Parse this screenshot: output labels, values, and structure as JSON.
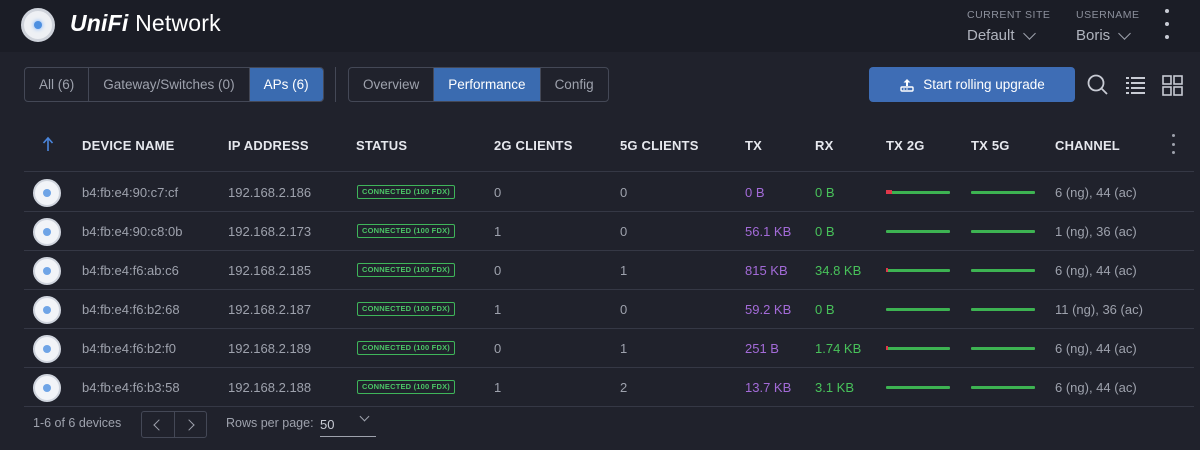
{
  "header": {
    "brand_prefix": "UniFi",
    "brand_suffix": " Network",
    "site_label": "CURRENT SITE",
    "site_value": "Default",
    "user_label": "USERNAME",
    "user_value": "Boris"
  },
  "filters": {
    "device_types": [
      "All (6)",
      "Gateway/Switches (0)",
      "APs (6)"
    ],
    "active_type": "APs (6)",
    "views": [
      "Overview",
      "Performance",
      "Config"
    ],
    "active_view": "Performance"
  },
  "toolbar": {
    "upgrade_label": "Start rolling upgrade"
  },
  "table": {
    "columns": {
      "name": "DEVICE NAME",
      "ip": "IP ADDRESS",
      "status": "STATUS",
      "clients2g": "2G CLIENTS",
      "clients5g": "5G CLIENTS",
      "tx": "TX",
      "rx": "RX",
      "tx2g": "TX 2G",
      "tx5g": "TX 5G",
      "channel": "CHANNEL"
    },
    "rows": [
      {
        "name": "b4:fb:e4:90:c7:cf",
        "ip": "192.168.2.186",
        "status": "CONNECTED (100 FDX)",
        "c2g": "0",
        "c5g": "0",
        "tx": "0 B",
        "rx": "0 B",
        "channel": "6 (ng), 44 (ac)"
      },
      {
        "name": "b4:fb:e4:90:c8:0b",
        "ip": "192.168.2.173",
        "status": "CONNECTED (100 FDX)",
        "c2g": "1",
        "c5g": "0",
        "tx": "56.1 KB",
        "rx": "0 B",
        "channel": "1 (ng), 36 (ac)"
      },
      {
        "name": "b4:fb:e4:f6:ab:c6",
        "ip": "192.168.2.185",
        "status": "CONNECTED (100 FDX)",
        "c2g": "0",
        "c5g": "1",
        "tx": "815 KB",
        "rx": "34.8 KB",
        "channel": "6 (ng), 44 (ac)"
      },
      {
        "name": "b4:fb:e4:f6:b2:68",
        "ip": "192.168.2.187",
        "status": "CONNECTED (100 FDX)",
        "c2g": "1",
        "c5g": "0",
        "tx": "59.2 KB",
        "rx": "0 B",
        "channel": "11 (ng), 36 (ac)"
      },
      {
        "name": "b4:fb:e4:f6:b2:f0",
        "ip": "192.168.2.189",
        "status": "CONNECTED (100 FDX)",
        "c2g": "0",
        "c5g": "1",
        "tx": "251 B",
        "rx": "1.74 KB",
        "channel": "6 (ng), 44 (ac)"
      },
      {
        "name": "b4:fb:e4:f6:b3:58",
        "ip": "192.168.2.188",
        "status": "CONNECTED (100 FDX)",
        "c2g": "1",
        "c5g": "2",
        "tx": "13.7 KB",
        "rx": "3.1 KB",
        "channel": "6 (ng), 44 (ac)"
      }
    ]
  },
  "footer": {
    "count": "1-6 of 6 devices",
    "rows_per_page_label": "Rows per page:",
    "rows_per_page_value": "50"
  },
  "colors": {
    "accent": "#3e6db5",
    "tx": "#a36bd8",
    "rx": "#48c25a",
    "status_ok": "#4bc466"
  }
}
